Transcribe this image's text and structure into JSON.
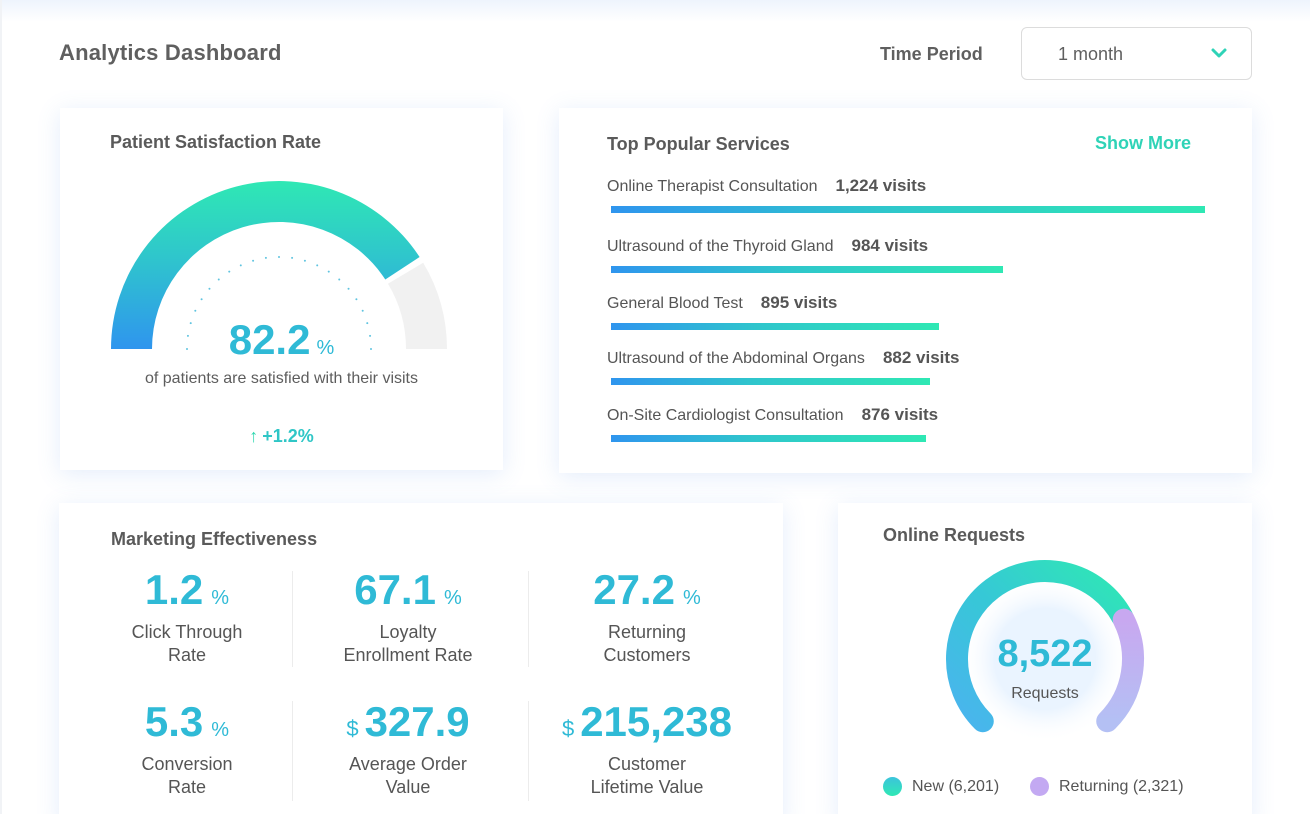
{
  "header": {
    "title": "Analytics Dashboard",
    "time_period_label": "Time Period",
    "time_period_value": "1 month"
  },
  "satisfaction": {
    "title": "Patient Satisfaction Rate",
    "value": "82.2",
    "unit": "%",
    "percent": 82.2,
    "description": "of patients are satisfied with their visits",
    "change": "+1.2%",
    "change_icon": "arrow-up-icon"
  },
  "services": {
    "title": "Top Popular Services",
    "show_more": "Show More",
    "items": [
      {
        "name": "Online Therapist Consultation",
        "visits": "1,224 visits",
        "count": 1224
      },
      {
        "name": "Ultrasound of the Thyroid Gland",
        "visits": "984 visits",
        "count": 984
      },
      {
        "name": "General Blood Test",
        "visits": "895 visits",
        "count": 895
      },
      {
        "name": "Ultrasound of the Abdominal Organs",
        "visits": "882 visits",
        "count": 882
      },
      {
        "name": "On-Site Cardiologist Consultation",
        "visits": "876 visits",
        "count": 876
      }
    ]
  },
  "marketing": {
    "title": "Marketing Effectiveness",
    "metrics": [
      {
        "value": "1.2",
        "unit": "%",
        "prefix": "",
        "label_line1": "Click Through",
        "label_line2": "Rate"
      },
      {
        "value": "67.1",
        "unit": "%",
        "prefix": "",
        "label_line1": "Loyalty",
        "label_line2": "Enrollment Rate"
      },
      {
        "value": "27.2",
        "unit": "%",
        "prefix": "",
        "label_line1": "Returning",
        "label_line2": "Customers"
      },
      {
        "value": "5.3",
        "unit": "%",
        "prefix": "",
        "label_line1": "Conversion",
        "label_line2": "Rate"
      },
      {
        "value": "327.9",
        "unit": "",
        "prefix": "$",
        "label_line1": "Average Order",
        "label_line2": "Value"
      },
      {
        "value": "215,238",
        "unit": "",
        "prefix": "$",
        "label_line1": "Customer",
        "label_line2": "Lifetime Value"
      }
    ]
  },
  "requests": {
    "title": "Online Requests",
    "total": "8,522",
    "total_label": "Requests",
    "legend": [
      {
        "label": "New (6,201)",
        "count": 6201,
        "color": "#34d3c6"
      },
      {
        "label": "Returning (2,321)",
        "count": 2321,
        "color": "#c3a9f2"
      }
    ]
  },
  "colors": {
    "accent": "#2fbad6",
    "gradient_start": "#2f95ee",
    "gradient_end": "#2fe8b4",
    "purple": "#c3a9f2",
    "track": "#f1f1f1"
  }
}
